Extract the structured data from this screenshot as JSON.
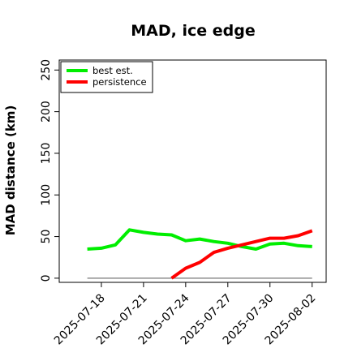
{
  "chart_data": {
    "type": "line",
    "title": "MAD, ice edge",
    "xlabel": "",
    "ylabel": "MAD distance (km)",
    "x": [
      "2025-07-17",
      "2025-07-18",
      "2025-07-19",
      "2025-07-20",
      "2025-07-21",
      "2025-07-22",
      "2025-07-23",
      "2025-07-24",
      "2025-07-25",
      "2025-07-26",
      "2025-07-27",
      "2025-07-28",
      "2025-07-29",
      "2025-07-30",
      "2025-07-31",
      "2025-08-01",
      "2025-08-02"
    ],
    "xlim": [
      "2025-07-15",
      "2025-08-03"
    ],
    "x_ticks": [
      "2025-07-18",
      "2025-07-21",
      "2025-07-24",
      "2025-07-27",
      "2025-07-30",
      "2025-08-02"
    ],
    "ylim": [
      -5,
      262
    ],
    "y_ticks": [
      0,
      50,
      100,
      150,
      200,
      250
    ],
    "grid": false,
    "legend_position": "top-left",
    "series": [
      {
        "name": "best est.",
        "color": "#00ee00",
        "values": [
          35,
          36,
          40,
          58,
          55,
          53,
          52,
          45,
          47,
          44,
          42,
          38,
          35,
          41,
          42,
          39,
          38
        ]
      },
      {
        "name": "persistence",
        "color": "#ff0000",
        "values": [
          null,
          null,
          null,
          null,
          null,
          null,
          0,
          12,
          19,
          31,
          36,
          40,
          44,
          48,
          48,
          51,
          57
        ]
      }
    ],
    "reference_line": {
      "y": 0,
      "color": "#777777"
    }
  }
}
